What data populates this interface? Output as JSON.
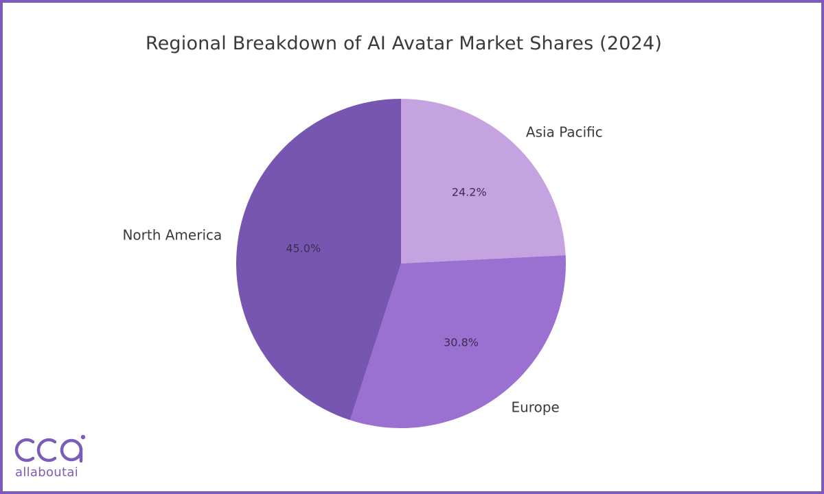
{
  "chart_data": {
    "type": "pie",
    "title": "Regional Breakdown of AI Avatar Market Shares (2024)",
    "categories": [
      "Asia Pacific",
      "Europe",
      "North America"
    ],
    "values": [
      24.2,
      30.8,
      45.0
    ],
    "labels": [
      "24.2%",
      "30.8%",
      "45.0%"
    ],
    "colors": [
      "#c4a3e0",
      "#9a70d0",
      "#7656b1"
    ],
    "start_angle_deg": 90,
    "direction": "clockwise",
    "legend": "none (labels beside slices)"
  },
  "title": "Regional Breakdown of AI Avatar Market Shares (2024)",
  "slices": [
    {
      "label": "Asia Pacific",
      "pct": "24.2%"
    },
    {
      "label": "Europe",
      "pct": "30.8%"
    },
    {
      "label": "North America",
      "pct": "45.0%"
    }
  ],
  "branding": {
    "logo_mark": "aai",
    "logo_text": "allaboutai",
    "frame_color": "#7b5cb8"
  }
}
